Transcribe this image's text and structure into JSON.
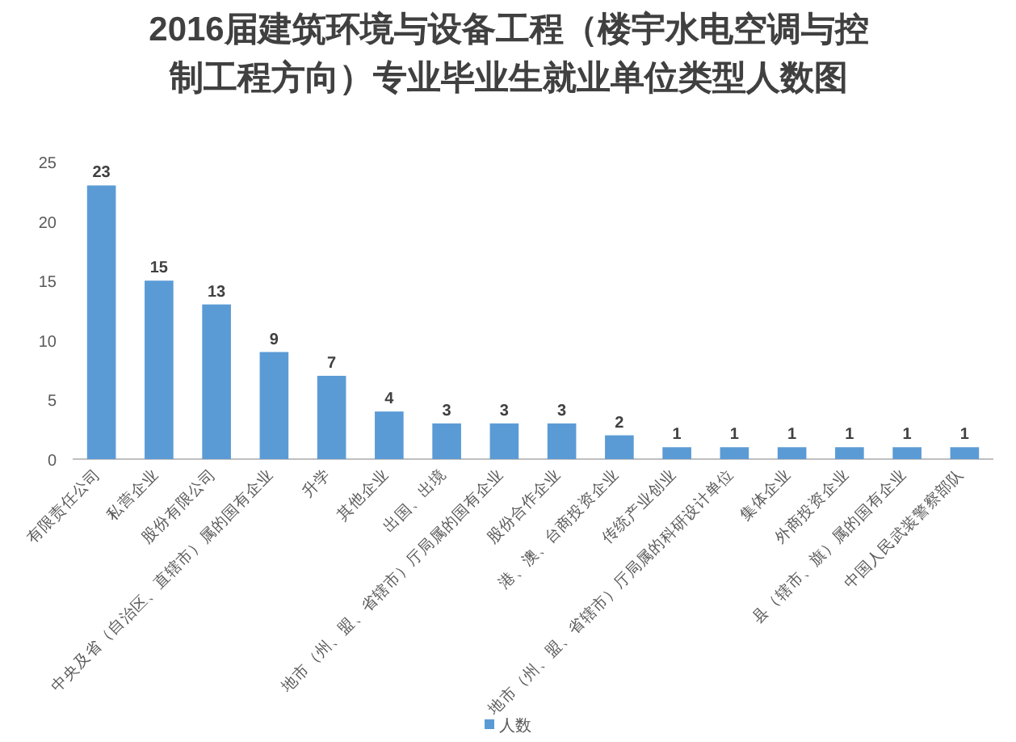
{
  "chart_data": {
    "type": "bar",
    "title": "2016届建筑环境与设备工程（楼宇水电空调与控制工程方向）专业毕业生就业单位类型人数图",
    "categories": [
      "有限责任公司",
      "私营企业",
      "股份有限公司",
      "中央及省（自治区、直辖市）属的国有企业",
      "升学",
      "其他企业",
      "出国、出境",
      "地市（州、盟、省辖市）厅局属的国有企业",
      "股份合作企业",
      "港、澳、台商投资企业",
      "传统产业创业",
      "地市（州、盟、省辖市）厅局属的科研设计单位",
      "集体企业",
      "外商投资企业",
      "县（辖市、旗）属的国有企业",
      "中国人民武装警察部队"
    ],
    "series": [
      {
        "name": "人数",
        "color": "#5b9bd5",
        "values": [
          23,
          15,
          13,
          9,
          7,
          4,
          3,
          3,
          3,
          2,
          1,
          1,
          1,
          1,
          1,
          1
        ]
      }
    ],
    "ylim": [
      0,
      25
    ],
    "yticks": [
      0,
      5,
      10,
      15,
      20,
      25
    ],
    "data_labels": true,
    "legend": "bottom",
    "grid": false
  }
}
